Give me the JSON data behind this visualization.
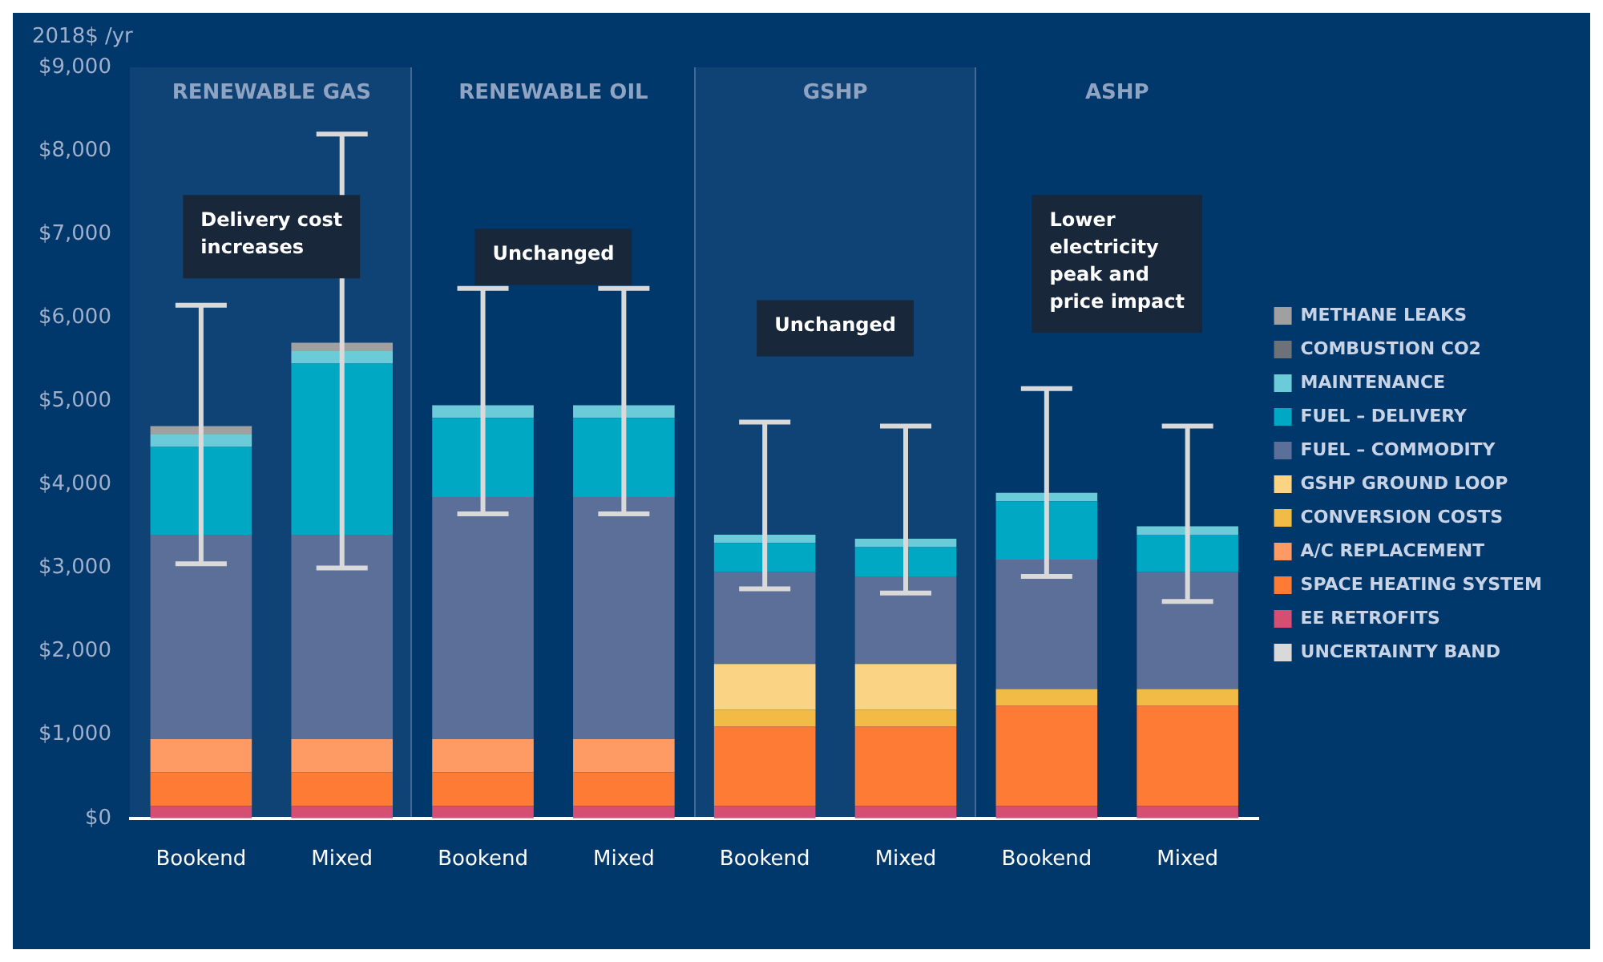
{
  "chart_data": {
    "type": "bar",
    "stacked": true,
    "ylabel": "2018$ /yr",
    "categories": [
      "Bookend",
      "Mixed",
      "Bookend",
      "Mixed",
      "Bookend",
      "Mixed",
      "Bookend",
      "Mixed"
    ],
    "series": [
      {
        "name": "EE RETROFITS",
        "color": "#d64f72",
        "values": [
          150,
          150,
          150,
          150,
          150,
          150,
          150,
          150
        ]
      },
      {
        "name": "SPACE HEATING SYSTEM",
        "color": "#fe7b36",
        "values": [
          400,
          400,
          400,
          400,
          950,
          950,
          1200,
          1200
        ]
      },
      {
        "name": "A/C REPLACEMENT",
        "color": "#fe9a64",
        "values": [
          400,
          400,
          400,
          400,
          0,
          0,
          0,
          0
        ]
      },
      {
        "name": "CONVERSION COSTS",
        "color": "#f2bb45",
        "values": [
          0,
          0,
          0,
          0,
          200,
          200,
          200,
          200
        ]
      },
      {
        "name": "GSHP GROUND LOOP",
        "color": "#fad385",
        "values": [
          0,
          0,
          0,
          0,
          550,
          550,
          0,
          0
        ]
      },
      {
        "name": "FUEL – COMMODITY",
        "color": "#5b6f98",
        "values": [
          2450,
          2450,
          2900,
          2900,
          1100,
          1050,
          1550,
          1400
        ]
      },
      {
        "name": "FUEL – DELIVERY",
        "color": "#00a8c4",
        "values": [
          1050,
          2050,
          950,
          950,
          350,
          350,
          700,
          450
        ]
      },
      {
        "name": "MAINTENANCE",
        "color": "#6ccbd8",
        "values": [
          150,
          150,
          150,
          150,
          100,
          100,
          100,
          100
        ]
      },
      {
        "name": "COMBUSTION CO2",
        "color": "#6d7278",
        "values": [
          0,
          0,
          0,
          0,
          0,
          0,
          0,
          0
        ]
      },
      {
        "name": "METHANE LEAKS",
        "color": "#a0a0a0",
        "values": [
          100,
          100,
          0,
          0,
          0,
          0,
          0,
          0
        ]
      },
      {
        "name": "UNCERTAINTY BAND",
        "color": "#d9d9d9",
        "values": [
          0,
          0,
          0,
          0,
          0,
          0,
          0,
          0
        ],
        "errors": [
          [
            3050,
            6150
          ],
          [
            3000,
            8200
          ],
          [
            3650,
            6350
          ],
          [
            3650,
            6350
          ],
          [
            2750,
            4750
          ],
          [
            2700,
            4700
          ],
          [
            2900,
            5150
          ],
          [
            2600,
            4700
          ]
        ]
      }
    ],
    "ylim": [
      0,
      9000
    ],
    "yticks": [
      {
        "value": 0,
        "label": "$0"
      },
      {
        "value": 1000,
        "label": "$1,000"
      },
      {
        "value": 2000,
        "label": "$2,000"
      },
      {
        "value": 3000,
        "label": "$3,000"
      },
      {
        "value": 4000,
        "label": "$4,000"
      },
      {
        "value": 5000,
        "label": "$5,000"
      },
      {
        "value": 6000,
        "label": "$6,000"
      },
      {
        "value": 7000,
        "label": "$7,000"
      },
      {
        "value": 8000,
        "label": "$8,000"
      },
      {
        "value": 9000,
        "label": "$9,000"
      }
    ],
    "annotations": [
      "RENEWABLE GAS",
      "RENEWABLE OIL",
      "GSHP",
      "ASHP",
      "Delivery cost increases",
      "Unchanged",
      "Unchanged",
      "Lower electricity peak and price impact"
    ],
    "legend": "right",
    "grid": false
  }
}
